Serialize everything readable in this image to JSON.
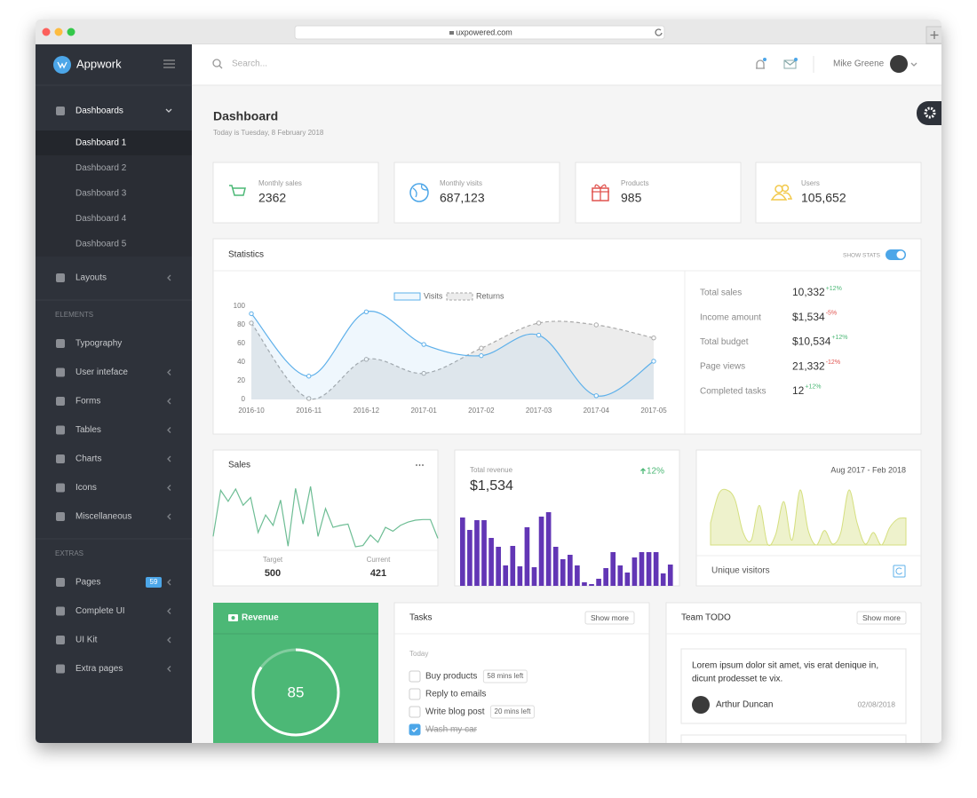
{
  "browser": {
    "url": "uxpowered.com"
  },
  "sidebar": {
    "brand": "Appwork",
    "menu": [
      {
        "label": "Dashboards",
        "children": [
          "Dashboard 1",
          "Dashboard 2",
          "Dashboard 3",
          "Dashboard 4",
          "Dashboard 5"
        ]
      },
      {
        "label": "Layouts"
      }
    ],
    "sections": [
      {
        "heading": "ELEMENTS",
        "items": [
          "Typography",
          "User inteface",
          "Forms",
          "Tables",
          "Charts",
          "Icons",
          "Miscellaneous"
        ]
      },
      {
        "heading": "EXTRAS",
        "items": [
          "Pages",
          "Complete UI",
          "UI Kit",
          "Extra pages"
        ],
        "badge": "59"
      }
    ]
  },
  "header": {
    "search_placeholder": "Search...",
    "user": "Mike Greene"
  },
  "page": {
    "title": "Dashboard",
    "subtitle": "Today is Tuesday, 8 February 2018"
  },
  "stats": [
    {
      "label": "Monthly sales",
      "value": "2362",
      "color": "#4cb876"
    },
    {
      "label": "Monthly visits",
      "value": "687,123",
      "color": "#4ca6e8"
    },
    {
      "label": "Products",
      "value": "985",
      "color": "#e0534f"
    },
    {
      "label": "Users",
      "value": "105,652",
      "color": "#f2c94c"
    }
  ],
  "statistics": {
    "title": "Statistics",
    "toggle_label": "SHOW STATS",
    "summary": [
      {
        "label": "Total sales",
        "value": "10,332",
        "change": "+12%"
      },
      {
        "label": "Income amount",
        "value": "$1,534",
        "change": "-5%"
      },
      {
        "label": "Total budget",
        "value": "$10,534",
        "change": "+12%"
      },
      {
        "label": "Page views",
        "value": "21,332",
        "change": "-12%"
      },
      {
        "label": "Completed tasks",
        "value": "12",
        "change": "+12%"
      }
    ]
  },
  "sales": {
    "title": "Sales",
    "target_label": "Target",
    "target": "500",
    "current_label": "Current",
    "current": "421"
  },
  "revenue_card": {
    "label": "Total revenue",
    "value": "$1,534",
    "change": "12%"
  },
  "visitors": {
    "period": "Aug 2017 - Feb 2018",
    "title": "Unique visitors"
  },
  "revenue": {
    "title": "Revenue",
    "value": 85
  },
  "tasks": {
    "title": "Tasks",
    "button": "Show more",
    "group": "Today",
    "items": [
      {
        "text": "Buy products",
        "note": "58 mins left",
        "done": false
      },
      {
        "text": "Reply to emails",
        "done": false
      },
      {
        "text": "Write blog post",
        "note": "20 mins left",
        "done": false
      },
      {
        "text": "Wash my car",
        "done": true
      }
    ]
  },
  "team_todo": {
    "title": "Team TODO",
    "button": "Show more",
    "items": [
      {
        "lines": [
          "Lorem ipsum dolor sit amet, vis erat denique in,",
          "dicunt prodesset te vix."
        ],
        "author": "Arthur Duncan",
        "date": "02/08/2018"
      }
    ]
  },
  "chart_data": [
    {
      "type": "line",
      "categories": [
        "2016-10",
        "2016-11",
        "2016-12",
        "2017-01",
        "2017-02",
        "2017-03",
        "2017-04",
        "2017-05"
      ],
      "series": [
        {
          "name": "Visits",
          "color": "#5eb0ea",
          "values": [
            92,
            25,
            94,
            59,
            47,
            69,
            4,
            41
          ]
        },
        {
          "name": "Returns",
          "color": "#a9a9a9",
          "dashed": true,
          "values": [
            82,
            1,
            43,
            28,
            55,
            82,
            80,
            66
          ]
        }
      ],
      "ylim": [
        0,
        100
      ],
      "yticks": [
        0,
        20,
        40,
        60,
        80,
        100
      ]
    },
    {
      "type": "line",
      "color": "#6dbd94",
      "values": [
        19,
        90,
        73,
        92,
        67,
        79,
        25,
        52,
        36,
        75,
        4,
        93,
        38,
        96,
        19,
        62,
        33,
        36,
        38,
        3,
        5,
        21,
        10,
        33,
        27,
        36,
        41,
        44,
        45,
        45,
        16
      ]
    },
    {
      "type": "bar",
      "color": "#6236b5",
      "values": [
        77,
        63,
        74,
        74,
        54,
        44,
        23,
        45,
        22,
        66,
        21,
        78,
        83,
        44,
        30,
        35,
        23,
        4,
        2,
        8,
        20,
        38,
        23,
        15,
        32,
        38,
        38,
        38,
        14,
        24
      ]
    },
    {
      "type": "area",
      "color": "#d5df7f",
      "values": [
        24,
        54,
        58,
        48,
        14,
        6,
        42,
        2,
        12,
        46,
        6,
        58,
        16,
        1,
        16,
        2,
        14,
        58,
        24,
        2,
        14,
        1,
        19,
        28,
        29
      ]
    }
  ]
}
